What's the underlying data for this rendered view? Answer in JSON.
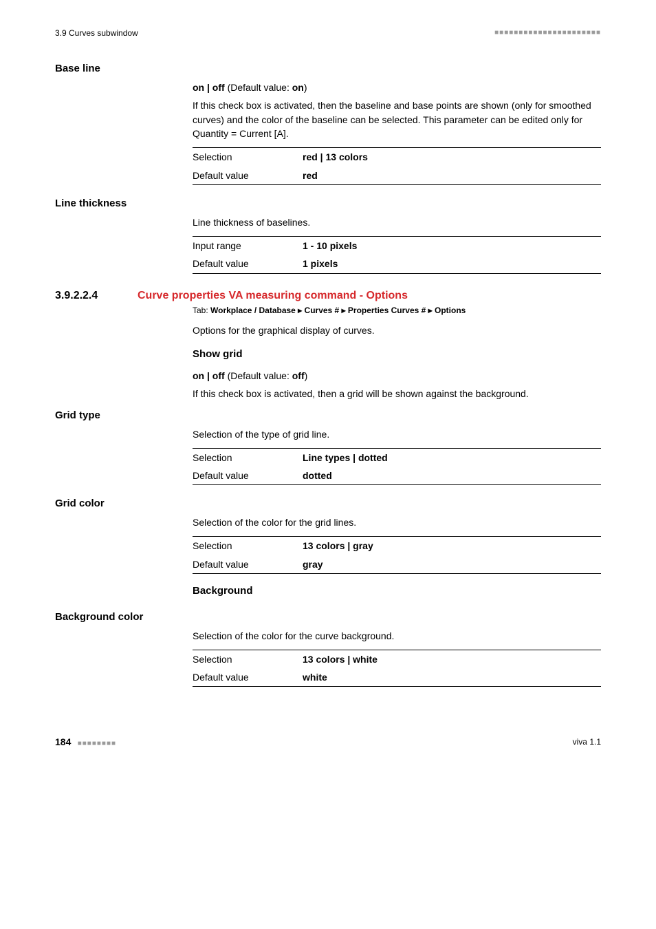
{
  "header": {
    "section_ref": "3.9 Curves subwindow"
  },
  "params": {
    "base_line": {
      "label": "Base line",
      "value_line_prefix": "on | off",
      "value_line_mid": " (Default value: ",
      "value_line_default": "on",
      "value_line_suffix": ")",
      "desc_part1": "If this check box is activated, then the baseline and base points are shown (only for smoothed curves) and the color of the baseline can be selected. This parameter can be edited only for ",
      "desc_bold1": "Quantity",
      "desc_mid": " = ",
      "desc_bold2": "Current [A]",
      "desc_suffix": ".",
      "kv": {
        "r1_label": "Selection",
        "r1_value": "red | 13 colors",
        "r2_label": "Default value",
        "r2_value": "red"
      }
    },
    "line_thickness": {
      "label": "Line thickness",
      "desc": "Line thickness of baselines.",
      "kv": {
        "r1_label": "Input range",
        "r1_value": "1 - 10 pixels",
        "r2_label": "Default value",
        "r2_value": "1 pixels"
      }
    },
    "section": {
      "num": "3.9.2.2.4",
      "title": "Curve properties VA measuring command - Options",
      "tab_prefix": "Tab: ",
      "tab_path": "Workplace / Database ▸ Curves # ▸ Properties Curves # ▸ Options",
      "desc": "Options for the graphical display of curves."
    },
    "show_grid": {
      "heading": "Show grid",
      "value_line_prefix": "on | off",
      "value_line_mid": " (Default value: ",
      "value_line_default": "off",
      "value_line_suffix": ")",
      "desc": "If this check box is activated, then a grid will be shown against the background."
    },
    "grid_type": {
      "label": "Grid type",
      "desc": "Selection of the type of grid line.",
      "kv": {
        "r1_label": "Selection",
        "r1_value": "Line types | dotted",
        "r2_label": "Default value",
        "r2_value": "dotted"
      }
    },
    "grid_color": {
      "label": "Grid color",
      "desc": "Selection of the color for the grid lines.",
      "kv": {
        "r1_label": "Selection",
        "r1_value": "13 colors | gray",
        "r2_label": "Default value",
        "r2_value": "gray"
      }
    },
    "background": {
      "heading": "Background"
    },
    "background_color": {
      "label": "Background color",
      "desc": "Selection of the color for the curve background.",
      "kv": {
        "r1_label": "Selection",
        "r1_value": "13 colors | white",
        "r2_label": "Default value",
        "r2_value": "white"
      }
    }
  },
  "footer": {
    "page": "184",
    "product": "viva 1.1"
  }
}
